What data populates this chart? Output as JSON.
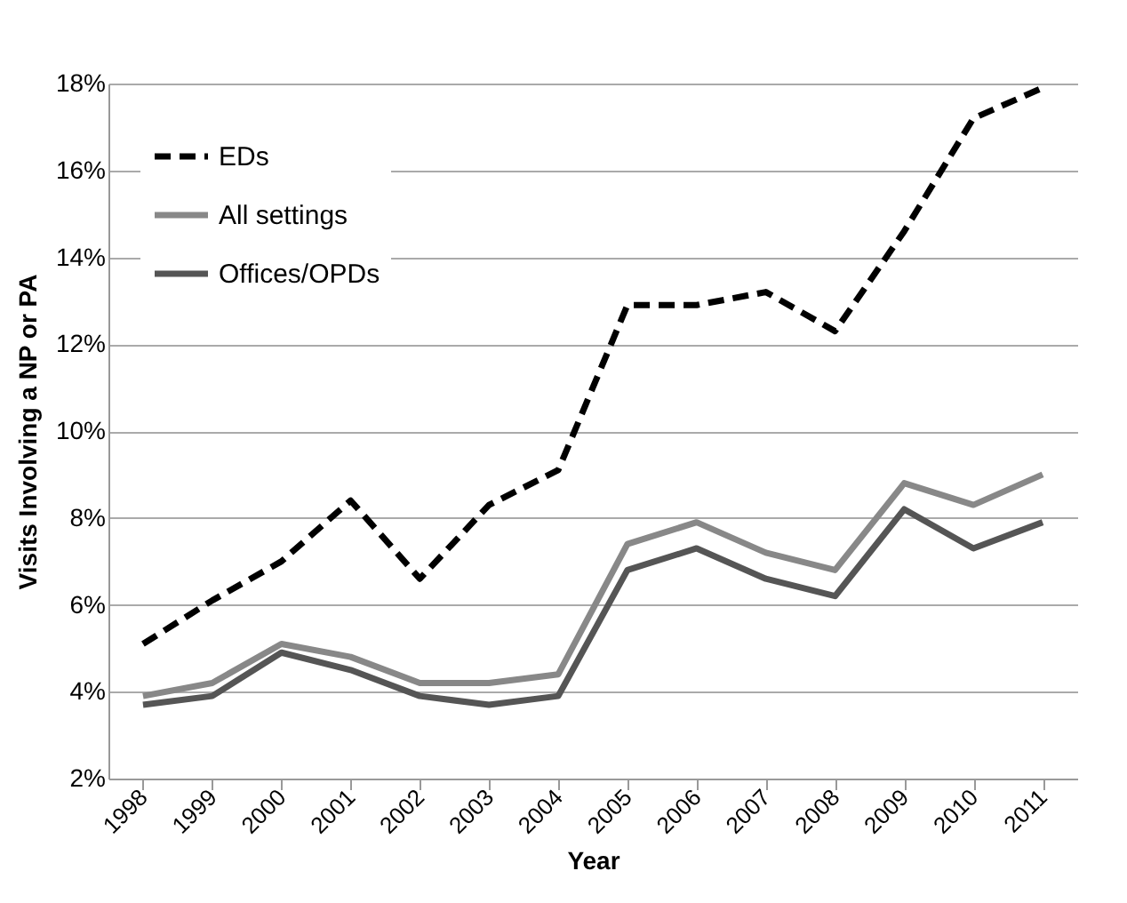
{
  "chart_data": {
    "type": "line",
    "xlabel": "Year",
    "ylabel": "Visits Involving a NP or PA",
    "categories": [
      "1998",
      "1999",
      "2000",
      "2001",
      "2002",
      "2003",
      "2004",
      "2005",
      "2006",
      "2007",
      "2008",
      "2009",
      "2010",
      "2011"
    ],
    "series": [
      {
        "name": "EDs",
        "color": "#000000",
        "line_style": "dashed",
        "values": [
          5.1,
          6.1,
          7.0,
          8.4,
          6.6,
          8.3,
          9.1,
          12.9,
          12.9,
          13.2,
          12.3,
          14.6,
          17.2,
          17.9
        ]
      },
      {
        "name": "All settings",
        "color": "#888888",
        "line_style": "solid",
        "values": [
          3.9,
          4.2,
          5.1,
          4.8,
          4.2,
          4.2,
          4.4,
          7.4,
          7.9,
          7.2,
          6.8,
          8.8,
          8.3,
          9.0
        ]
      },
      {
        "name": "Offices/OPDs",
        "color": "#555555",
        "line_style": "solid",
        "values": [
          3.7,
          3.9,
          4.9,
          4.5,
          3.9,
          3.7,
          3.9,
          6.8,
          7.3,
          6.6,
          6.2,
          8.2,
          7.3,
          7.9
        ]
      }
    ],
    "ylim": [
      2,
      18
    ],
    "yticks": [
      {
        "value": 2,
        "label": "2%"
      },
      {
        "value": 4,
        "label": "4%"
      },
      {
        "value": 6,
        "label": "6%"
      },
      {
        "value": 8,
        "label": "8%"
      },
      {
        "value": 10,
        "label": "10%"
      },
      {
        "value": 12,
        "label": "12%"
      },
      {
        "value": 14,
        "label": "14%"
      },
      {
        "value": 16,
        "label": "16%"
      },
      {
        "value": 18,
        "label": "18%"
      }
    ],
    "grid": "y",
    "legend": "top left",
    "marker": "none"
  }
}
